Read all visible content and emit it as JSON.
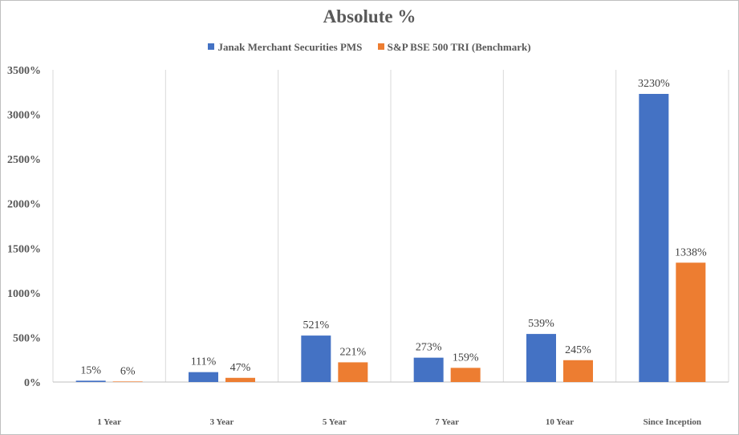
{
  "chart_data": {
    "type": "bar",
    "title": "Absolute %",
    "categories": [
      "1 Year",
      "3 Year",
      "5 Year",
      "7 Year",
      "10 Year",
      "Since Inception"
    ],
    "series": [
      {
        "name": "Janak Merchant Securities PMS",
        "color": "#4472c4",
        "values": [
          15,
          111,
          521,
          273,
          539,
          3230
        ],
        "labels": [
          "15%",
          "111%",
          "521%",
          "273%",
          "539%",
          "3230%"
        ]
      },
      {
        "name": "S&P BSE 500 TRI (Benchmark)",
        "color": "#ed7d31",
        "values": [
          6,
          47,
          221,
          159,
          245,
          1338
        ],
        "labels": [
          "6%",
          "47%",
          "221%",
          "159%",
          "245%",
          "1338%"
        ]
      }
    ],
    "ylim": [
      0,
      3500
    ],
    "yticks": [
      0,
      500,
      1000,
      1500,
      2000,
      2500,
      3000,
      3500
    ],
    "ytick_labels": [
      "0%",
      "500%",
      "1000%",
      "1500%",
      "2000%",
      "2500%",
      "3000%",
      "3500%"
    ],
    "xlabel": "",
    "ylabel": "",
    "legend_position": "top",
    "grid": "vertical"
  }
}
